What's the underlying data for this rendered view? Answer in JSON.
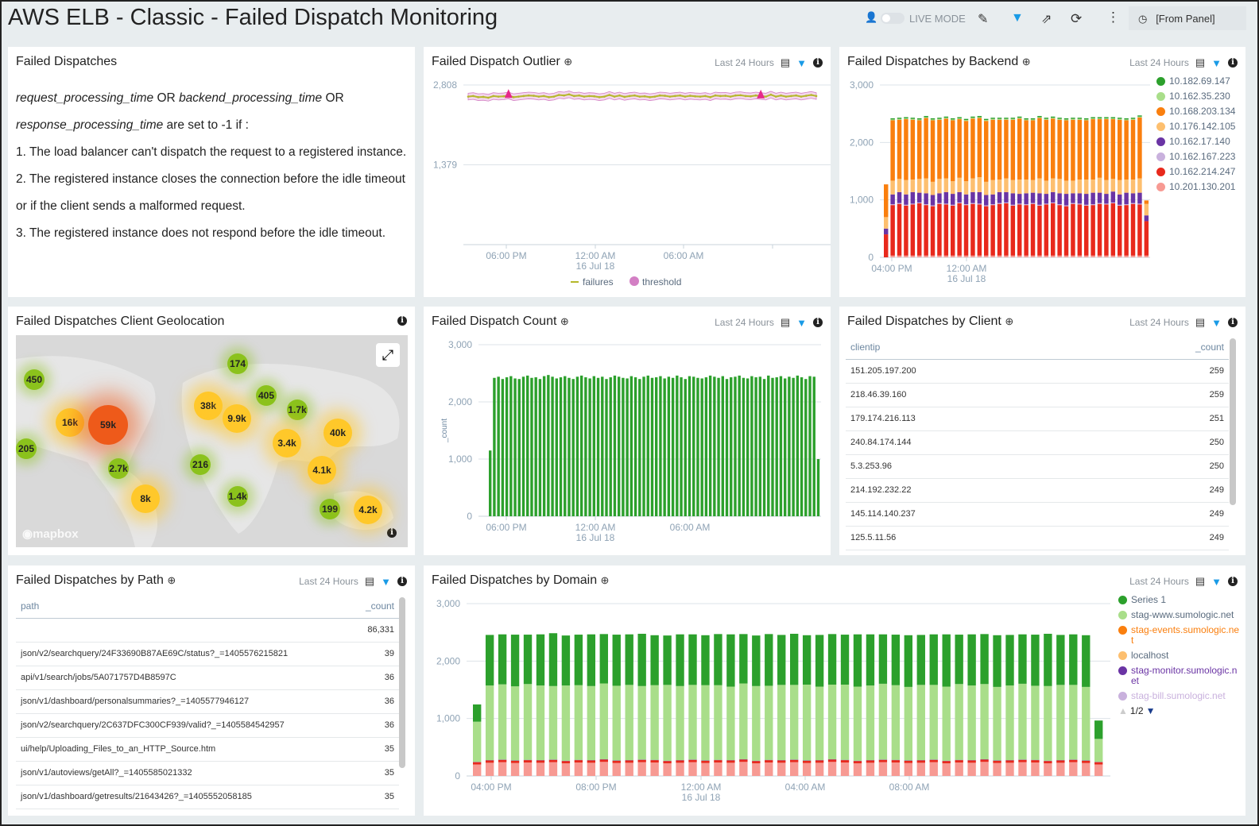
{
  "header": {
    "title": "AWS ELB - Classic - Failed Dispatch Monitoring",
    "live_mode": "LIVE MODE",
    "time_range": "[From Panel]"
  },
  "common": {
    "range": "Last 24 Hours"
  },
  "text_panel": {
    "title": "Failed Dispatches",
    "line1_a": "request_processing_time",
    "line1_b": " OR ",
    "line1_c": "backend_processing_time",
    "line1_d": " OR",
    "line2_a": "response_processing_time",
    "line2_b": " are set to -1 if :",
    "item1": "1. The load balancer can't dispatch the request to a registered instance.",
    "item2": "2. The registered instance closes the connection before the idle timeout or if the client sends a malformed request.",
    "item3": "3. The registered instance does not respond before the idle timeout."
  },
  "geo": {
    "title": "Failed Dispatches Client Geolocation",
    "attribution": "mapbox",
    "clusters": [
      "450",
      "174",
      "16k",
      "59k",
      "38k",
      "9.9k",
      "405",
      "1.7k",
      "40k",
      "205",
      "3.4k",
      "2.7k",
      "216",
      "4.1k",
      "8k",
      "1.4k",
      "199",
      "4.2k"
    ]
  },
  "client_table": {
    "title": "Failed Dispatches by Client",
    "columns": [
      "clientip",
      "_count"
    ],
    "rows": [
      [
        "151.205.197.200",
        "259"
      ],
      [
        "218.46.39.160",
        "259"
      ],
      [
        "179.174.216.113",
        "251"
      ],
      [
        "240.84.174.144",
        "250"
      ],
      [
        "5.3.253.96",
        "250"
      ],
      [
        "214.192.232.22",
        "249"
      ],
      [
        "145.114.140.237",
        "249"
      ],
      [
        "125.5.11.56",
        "249"
      ]
    ]
  },
  "path_table": {
    "title": "Failed Dispatches by Path",
    "columns": [
      "path",
      "_count"
    ],
    "rows": [
      [
        "",
        "86,331"
      ],
      [
        "json/v2/searchquery/24F33690B87AE69C/status?_=1405576215821",
        "39"
      ],
      [
        "api/v1/search/jobs/5A071757D4B8597C",
        "36"
      ],
      [
        "json/v1/dashboard/personalsummaries?_=1405577946127",
        "36"
      ],
      [
        "json/v2/searchquery/2C637DFC300CF939/valid?_=1405584542957",
        "36"
      ],
      [
        "ui/help/Uploading_Files_to_an_HTTP_Source.htm",
        "35"
      ],
      [
        "json/v1/autoviews/getAll?_=1405585021332",
        "35"
      ],
      [
        "json/v1/dashboard/getresults/21643426?_=1405552058185",
        "35"
      ]
    ]
  },
  "chart_data": [
    {
      "id": "outlier",
      "type": "line",
      "title": "Failed Dispatch Outlier",
      "ylim": [
        -50,
        2808
      ],
      "yticks": [
        "2,808",
        "1,379"
      ],
      "ytick_values": [
        2808,
        1379
      ],
      "xticks": [
        "06:00 PM",
        "12:00 AM",
        "06:00 AM"
      ],
      "xtick_sub": [
        "",
        "16 Jul 18",
        ""
      ],
      "series": [
        {
          "name": "failures",
          "color": "#b5b82a"
        },
        {
          "name": "threshold",
          "color": "#d37fc4"
        }
      ],
      "threshold_band": 60,
      "outlier_indices": [
        8,
        58
      ],
      "outlier_color": "#e6288a",
      "values": [
        2600,
        2610,
        2590,
        2595,
        2580,
        2610,
        2600,
        2605,
        2620,
        2590,
        2600,
        2610,
        2620,
        2615,
        2600,
        2610,
        2590,
        2600,
        2630,
        2620,
        2640,
        2610,
        2620,
        2600,
        2610,
        2605,
        2590,
        2600,
        2630,
        2600,
        2620,
        2595,
        2610,
        2620,
        2600,
        2605,
        2590,
        2600,
        2620,
        2615,
        2600,
        2610,
        2620,
        2600,
        2615,
        2605,
        2600,
        2610,
        2590,
        2620,
        2610,
        2615,
        2600,
        2620,
        2625,
        2610,
        2605,
        2620,
        2610,
        2600,
        2635,
        2600,
        2620,
        2600,
        2610,
        2620,
        2600,
        2615,
        2630,
        2610
      ]
    },
    {
      "id": "backend",
      "type": "bar",
      "stacked": true,
      "title": "Failed Dispatches by Backend",
      "ylim": [
        0,
        3000
      ],
      "yticks": [
        "3,000",
        "2,000",
        "1,000",
        "0"
      ],
      "ytick_values": [
        3000,
        2000,
        1000,
        0
      ],
      "xticks": [
        "04:00 PM",
        "12:00 AM"
      ],
      "xtick_sub": [
        "",
        "16 Jul 18"
      ],
      "series": [
        {
          "name": "10.201.130.201",
          "color": "#f79a93",
          "values": [
            0,
            30,
            30,
            30,
            30,
            30,
            30,
            30,
            30,
            30,
            30,
            30,
            30,
            30,
            30,
            30,
            30,
            30,
            30,
            30,
            30,
            30,
            30,
            30,
            30,
            30,
            30,
            30,
            30,
            30,
            30,
            30,
            30,
            30,
            30,
            30,
            30,
            30,
            30,
            30
          ]
        },
        {
          "name": "10.162.214.247",
          "color": "#e8291c",
          "values": [
            400,
            880,
            900,
            870,
            890,
            910,
            880,
            860,
            900,
            890,
            870,
            910,
            880,
            900,
            890,
            860,
            880,
            900,
            910,
            870,
            890,
            880,
            900,
            870,
            890,
            910,
            880,
            860,
            900,
            890,
            870,
            880,
            900,
            890,
            910,
            870,
            880,
            900,
            890,
            600
          ]
        },
        {
          "name": "10.162.167.223",
          "color": "#c9b1dd",
          "values": [
            0,
            15,
            15,
            15,
            15,
            15,
            15,
            15,
            15,
            15,
            15,
            15,
            15,
            15,
            15,
            15,
            15,
            15,
            15,
            15,
            15,
            15,
            15,
            15,
            15,
            15,
            15,
            15,
            15,
            15,
            15,
            15,
            15,
            15,
            15,
            15,
            15,
            15,
            15,
            0
          ]
        },
        {
          "name": "10.162.17.140",
          "color": "#6a34a4",
          "values": [
            100,
            170,
            190,
            180,
            200,
            170,
            190,
            180,
            170,
            200,
            190,
            180,
            170,
            190,
            200,
            180,
            170,
            190,
            180,
            200,
            170,
            190,
            180,
            200,
            170,
            180,
            190,
            200,
            170,
            180,
            190,
            200,
            180,
            170,
            190,
            180,
            200,
            170,
            190,
            100
          ]
        },
        {
          "name": "10.176.142.105",
          "color": "#fdbf6f",
          "values": [
            200,
            240,
            230,
            250,
            220,
            240,
            260,
            230,
            250,
            240,
            220,
            250,
            230,
            240,
            260,
            230,
            250,
            220,
            240,
            230,
            250,
            240,
            220,
            260,
            230,
            240,
            250,
            230,
            220,
            240,
            250,
            230,
            260,
            240,
            220,
            250,
            230,
            240,
            250,
            200
          ]
        },
        {
          "name": "10.168.203.134",
          "color": "#fa7f0e",
          "values": [
            570,
            1050,
            1030,
            1060,
            1040,
            1020,
            1050,
            1070,
            1030,
            1040,
            1060,
            1020,
            1050,
            1040,
            1030,
            1060,
            1050,
            1040,
            1020,
            1050,
            1060,
            1030,
            1040,
            1050,
            1060,
            1040,
            1030,
            1050,
            1060,
            1040,
            1030,
            1050,
            1020,
            1060,
            1040,
            1050,
            1030,
            1040,
            1060,
            60
          ]
        },
        {
          "name": "10.162.35.230",
          "color": "#a9de8a",
          "values": [
            0,
            15,
            15,
            15,
            15,
            15,
            15,
            15,
            15,
            15,
            15,
            15,
            15,
            15,
            15,
            15,
            15,
            15,
            15,
            15,
            15,
            15,
            15,
            15,
            15,
            15,
            15,
            15,
            15,
            15,
            15,
            15,
            15,
            15,
            15,
            15,
            15,
            15,
            15,
            0
          ]
        },
        {
          "name": "10.182.69.147",
          "color": "#2ca02c",
          "values": [
            0,
            20,
            20,
            20,
            20,
            20,
            20,
            20,
            20,
            20,
            20,
            20,
            20,
            20,
            20,
            20,
            20,
            20,
            20,
            20,
            20,
            20,
            20,
            20,
            20,
            20,
            20,
            20,
            20,
            20,
            20,
            20,
            20,
            20,
            20,
            20,
            20,
            20,
            20,
            0
          ]
        }
      ]
    },
    {
      "id": "count",
      "type": "bar",
      "title": "Failed Dispatch Count",
      "ylabel": "_count",
      "ylim": [
        0,
        3000
      ],
      "yticks": [
        "3,000",
        "2,000",
        "1,000",
        "0"
      ],
      "ytick_values": [
        3000,
        2000,
        1000,
        0
      ],
      "xticks": [
        "06:00 PM",
        "12:00 AM",
        "06:00 AM"
      ],
      "xtick_sub": [
        "",
        "16 Jul 18",
        ""
      ],
      "series": [
        {
          "color": "#2ca02c",
          "values": [
            1150,
            2420,
            2440,
            2400,
            2430,
            2450,
            2410,
            2400,
            2440,
            2460,
            2420,
            2430,
            2400,
            2450,
            2470,
            2440,
            2410,
            2430,
            2450,
            2420,
            2400,
            2440,
            2460,
            2430,
            2410,
            2450,
            2420,
            2440,
            2400,
            2430,
            2460,
            2440,
            2420,
            2410,
            2450,
            2430,
            2400,
            2440,
            2460,
            2420,
            2430,
            2450,
            2410,
            2440,
            2420,
            2460,
            2430,
            2400,
            2450,
            2440,
            2420,
            2410,
            2430,
            2460,
            2440,
            2420,
            2450,
            2400,
            2430,
            2440,
            2460,
            2420,
            2410,
            2450,
            2430,
            2440,
            2400,
            2460,
            2420,
            2430,
            2450,
            2410,
            2440,
            2420,
            2460,
            2430,
            2400,
            2450,
            2440,
            1000
          ]
        }
      ]
    },
    {
      "id": "domain",
      "type": "bar",
      "stacked": true,
      "title": "Failed Dispatches by Domain",
      "ylim": [
        0,
        3000
      ],
      "yticks": [
        "3,000",
        "2,000",
        "1,000",
        "0"
      ],
      "ytick_values": [
        3000,
        2000,
        1000,
        0
      ],
      "xticks": [
        "04:00 PM",
        "08:00 PM",
        "12:00 AM",
        "04:00 AM",
        "08:00 AM"
      ],
      "xtick_sub": [
        "",
        "",
        "16 Jul 18",
        "",
        ""
      ],
      "legend_page": "1/2",
      "legend": [
        {
          "name": "Series 1",
          "color": "#2ca02c",
          "text": "#5a6b7e"
        },
        {
          "name": "stag-www.sumologic.net",
          "color": "#a9de8a",
          "text": "#5a6b7e"
        },
        {
          "name": "stag-events.sumologic.net",
          "color": "#fa7f0e",
          "text": "#fa7f0e"
        },
        {
          "name": "localhost",
          "color": "#fdbf6f",
          "text": "#5a6b7e"
        },
        {
          "name": "stag-monitor.sumologic.net",
          "color": "#6a34a4",
          "text": "#6a34a4"
        },
        {
          "name": "stag-bill.sumologic.net",
          "color": "#c9b1dd",
          "text": "#c9b1dd"
        }
      ],
      "series": [
        {
          "color": "#f79a93",
          "values": [
            200,
            230,
            240,
            225,
            235,
            230,
            240,
            220,
            235,
            230,
            245,
            225,
            230,
            240,
            235,
            220,
            230,
            240,
            225,
            235,
            230,
            245,
            220,
            235,
            230,
            240,
            225,
            230,
            245,
            235,
            220,
            230,
            240,
            235,
            225,
            230,
            240,
            220,
            235,
            230,
            245,
            225,
            230,
            240,
            235,
            220,
            230,
            240,
            225,
            200
          ]
        },
        {
          "name": "stag-events.sumologic.net",
          "color": "#e8291c",
          "values": [
            40,
            40,
            40,
            40,
            40,
            40,
            40,
            40,
            40,
            40,
            40,
            40,
            40,
            40,
            40,
            40,
            40,
            40,
            40,
            40,
            40,
            40,
            40,
            40,
            40,
            40,
            40,
            40,
            40,
            40,
            40,
            40,
            40,
            40,
            40,
            40,
            40,
            40,
            40,
            40,
            40,
            40,
            40,
            40,
            40,
            40,
            40,
            40,
            40,
            40
          ]
        },
        {
          "name": "stag-monitor.sumologic.net",
          "color": "#6a34a4",
          "values": [
            5,
            5,
            5,
            5,
            5,
            5,
            5,
            5,
            5,
            5,
            5,
            5,
            5,
            5,
            5,
            5,
            5,
            5,
            5,
            5,
            5,
            5,
            5,
            5,
            5,
            5,
            5,
            5,
            5,
            5,
            5,
            5,
            5,
            5,
            5,
            5,
            5,
            5,
            5,
            5,
            5,
            5,
            5,
            5,
            5,
            5,
            5,
            5,
            5,
            5
          ]
        },
        {
          "name": "stag-www.sumologic.net",
          "color": "#a9de8a",
          "values": [
            700,
            1300,
            1310,
            1290,
            1320,
            1300,
            1280,
            1310,
            1300,
            1290,
            1320,
            1300,
            1310,
            1280,
            1300,
            1320,
            1290,
            1300,
            1310,
            1300,
            1280,
            1320,
            1300,
            1290,
            1310,
            1300,
            1320,
            1280,
            1300,
            1310,
            1290,
            1300,
            1320,
            1300,
            1280,
            1310,
            1300,
            1290,
            1320,
            1300,
            1310,
            1280,
            1300,
            1320,
            1290,
            1300,
            1310,
            1300,
            1280,
            400
          ]
        },
        {
          "name": "Series 1",
          "color": "#2ca02c",
          "values": [
            300,
            880,
            870,
            900,
            860,
            890,
            920,
            870,
            880,
            900,
            860,
            890,
            880,
            910,
            870,
            860,
            900,
            880,
            870,
            890,
            910,
            860,
            880,
            900,
            870,
            890,
            860,
            900,
            880,
            870,
            910,
            890,
            860,
            880,
            900,
            870,
            880,
            910,
            860,
            890,
            870,
            900,
            880,
            860,
            890,
            910,
            870,
            880,
            900,
            320
          ]
        }
      ]
    }
  ]
}
